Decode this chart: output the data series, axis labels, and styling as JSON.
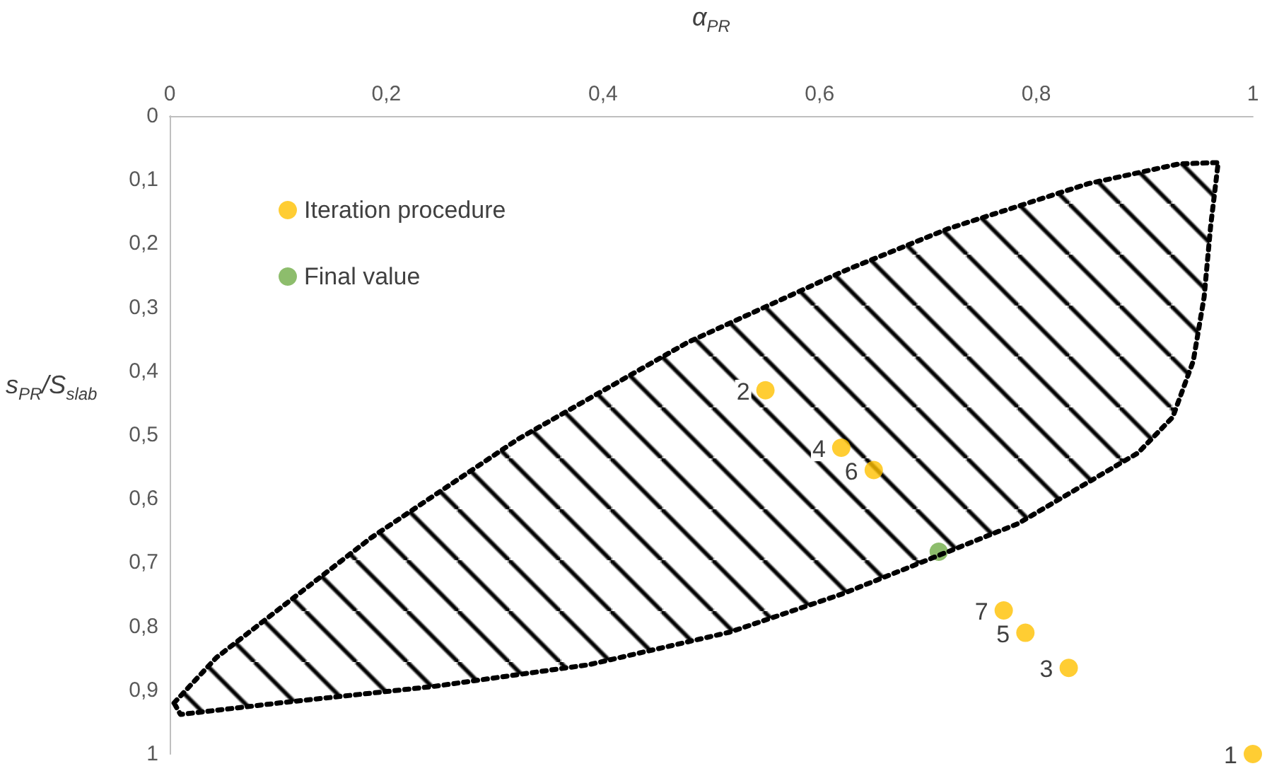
{
  "chart_data": {
    "type": "scatter",
    "xlabel": "α$_{PR}$",
    "ylabel": "s$_{PR}$/S$_{slab}$",
    "xlim": [
      0,
      1
    ],
    "ylim": [
      1,
      0
    ],
    "xticks": [
      0,
      {
        "value": 0.2,
        "label": "0,2"
      },
      {
        "value": 0.4,
        "label": "0,4"
      },
      {
        "value": 0.6,
        "label": "0,6"
      },
      {
        "value": 0.8,
        "label": "0,8"
      },
      1
    ],
    "yticks": [
      0,
      {
        "value": 0.1,
        "label": "0,1"
      },
      {
        "value": 0.2,
        "label": "0,2"
      },
      {
        "value": 0.3,
        "label": "0,3"
      },
      {
        "value": 0.4,
        "label": "0,4"
      },
      {
        "value": 0.5,
        "label": "0,5"
      },
      {
        "value": 0.6,
        "label": "0,6"
      },
      {
        "value": 0.7,
        "label": "0,7"
      },
      {
        "value": 0.8,
        "label": "0,8"
      },
      {
        "value": 0.9,
        "label": "0,9"
      },
      1
    ],
    "grid": false,
    "legend": "top left",
    "marker": "circle",
    "series": [
      {
        "type": "area",
        "color": "#000000",
        "line_style": "dotted",
        "marker": "none",
        "x": [
          0.004,
          0.043,
          0.186,
          0.322,
          0.478,
          0.621,
          0.718,
          0.848,
          0.932,
          0.968,
          0.961,
          0.955,
          0.945,
          0.926,
          0.894,
          0.783,
          0.686,
          0.621,
          0.517,
          0.387,
          0.244,
          0.101,
          0.01,
          0.004
        ],
        "values": [
          0.92,
          0.849,
          0.661,
          0.506,
          0.355,
          0.244,
          0.177,
          0.106,
          0.075,
          0.073,
          0.173,
          0.284,
          0.384,
          0.472,
          0.528,
          0.639,
          0.705,
          0.749,
          0.809,
          0.86,
          0.894,
          0.92,
          0.938,
          0.92
        ]
      },
      {
        "name": "Iteration procedure",
        "color": "#ffc000",
        "x": [
          1,
          0.55,
          0.83,
          0.62,
          0.79,
          0.65,
          0.77
        ],
        "values": [
          1,
          0.43,
          0.865,
          0.52,
          0.81,
          0.555,
          0.775
        ]
      },
      {
        "name": "Final value",
        "color": "#70ad47",
        "x": [
          0.71
        ],
        "values": [
          0.683
        ]
      }
    ],
    "annotations": [
      {
        "text": "1",
        "x": 1,
        "y": 1
      },
      {
        "text": "2",
        "x": 0.55,
        "y": 0.43
      },
      {
        "text": "3",
        "x": 0.83,
        "y": 0.865
      },
      {
        "text": "4",
        "x": 0.62,
        "y": 0.52
      },
      {
        "text": "5",
        "x": 0.79,
        "y": 0.81
      },
      {
        "text": "6",
        "x": 0.65,
        "y": 0.555
      },
      {
        "text": "7",
        "x": 0.77,
        "y": 0.775
      }
    ]
  }
}
